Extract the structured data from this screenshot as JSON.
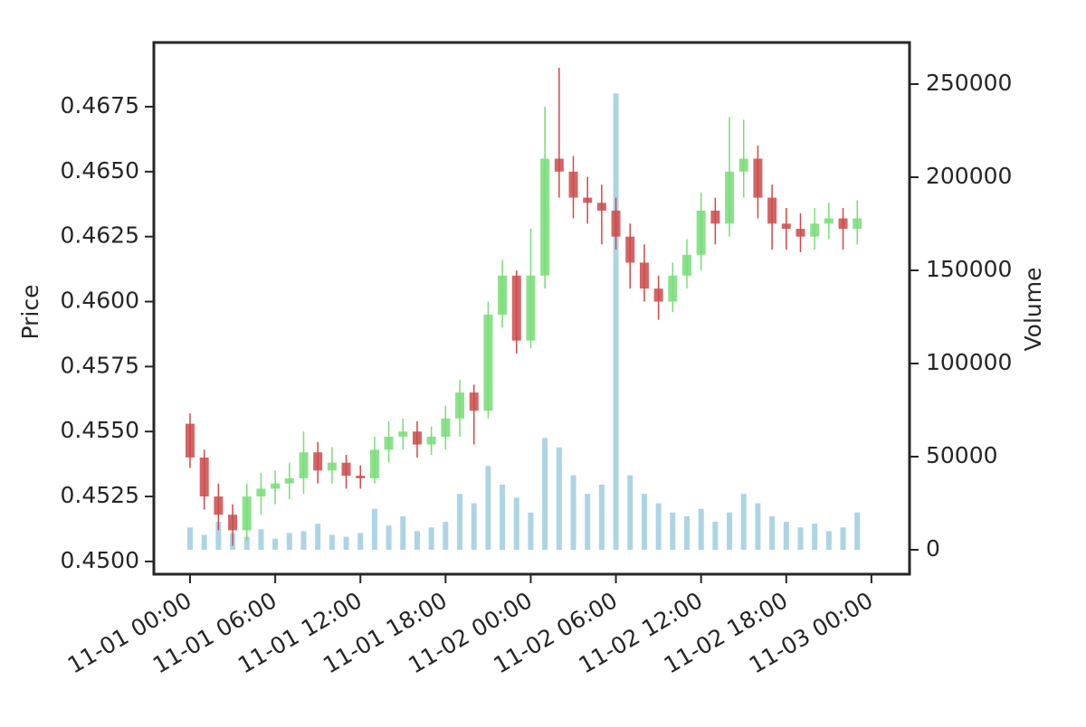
{
  "chart_data": {
    "type": "candlestick",
    "y_label": "Price",
    "y2_label": "Volume",
    "x": [
      "11-01 00:00",
      "11-01 01:00",
      "11-01 02:00",
      "11-01 03:00",
      "11-01 04:00",
      "11-01 05:00",
      "11-01 06:00",
      "11-01 07:00",
      "11-01 08:00",
      "11-01 09:00",
      "11-01 10:00",
      "11-01 11:00",
      "11-01 12:00",
      "11-01 13:00",
      "11-01 14:00",
      "11-01 15:00",
      "11-01 16:00",
      "11-01 17:00",
      "11-01 18:00",
      "11-01 19:00",
      "11-01 20:00",
      "11-01 21:00",
      "11-01 22:00",
      "11-01 23:00",
      "11-02 00:00",
      "11-02 01:00",
      "11-02 02:00",
      "11-02 03:00",
      "11-02 04:00",
      "11-02 05:00",
      "11-02 06:00",
      "11-02 07:00",
      "11-02 08:00",
      "11-02 09:00",
      "11-02 10:00",
      "11-02 11:00",
      "11-02 12:00",
      "11-02 13:00",
      "11-02 14:00",
      "11-02 15:00",
      "11-02 16:00",
      "11-02 17:00",
      "11-02 18:00",
      "11-02 19:00",
      "11-02 20:00",
      "11-02 21:00",
      "11-02 22:00",
      "11-02 23:00"
    ],
    "open": [
      0.4553,
      0.454,
      0.4525,
      0.4518,
      0.4512,
      0.4525,
      0.4528,
      0.453,
      0.4532,
      0.4542,
      0.4535,
      0.4538,
      0.4533,
      0.4532,
      0.4543,
      0.4548,
      0.455,
      0.4545,
      0.4548,
      0.4555,
      0.4565,
      0.4558,
      0.4595,
      0.461,
      0.4585,
      0.461,
      0.4655,
      0.465,
      0.464,
      0.4638,
      0.4635,
      0.4625,
      0.4615,
      0.4605,
      0.46,
      0.461,
      0.4618,
      0.4635,
      0.463,
      0.465,
      0.4655,
      0.464,
      0.463,
      0.4628,
      0.4625,
      0.463,
      0.4632,
      0.4628
    ],
    "high": [
      0.4557,
      0.4543,
      0.453,
      0.4522,
      0.453,
      0.4534,
      0.4535,
      0.4538,
      0.455,
      0.4546,
      0.4544,
      0.4541,
      0.4537,
      0.4548,
      0.4554,
      0.4555,
      0.4554,
      0.4552,
      0.456,
      0.457,
      0.4568,
      0.46,
      0.4616,
      0.4612,
      0.4628,
      0.4675,
      0.469,
      0.4656,
      0.4648,
      0.4645,
      0.464,
      0.463,
      0.4622,
      0.461,
      0.4615,
      0.4624,
      0.4642,
      0.464,
      0.4671,
      0.467,
      0.466,
      0.4645,
      0.4636,
      0.4634,
      0.4636,
      0.4638,
      0.4636,
      0.4639
    ],
    "low": [
      0.4536,
      0.452,
      0.4512,
      0.4506,
      0.4508,
      0.4518,
      0.4522,
      0.4524,
      0.4526,
      0.453,
      0.453,
      0.4528,
      0.4528,
      0.453,
      0.4538,
      0.4543,
      0.454,
      0.4541,
      0.4543,
      0.4548,
      0.4545,
      0.4555,
      0.459,
      0.458,
      0.4582,
      0.4605,
      0.464,
      0.4632,
      0.463,
      0.4622,
      0.462,
      0.4605,
      0.46,
      0.4593,
      0.4596,
      0.4605,
      0.4612,
      0.4622,
      0.4625,
      0.464,
      0.4632,
      0.462,
      0.462,
      0.4619,
      0.462,
      0.4624,
      0.462,
      0.4622
    ],
    "close": [
      0.454,
      0.4525,
      0.4518,
      0.4512,
      0.4525,
      0.4528,
      0.453,
      0.4532,
      0.4542,
      0.4535,
      0.4538,
      0.4533,
      0.4532,
      0.4543,
      0.4548,
      0.455,
      0.4545,
      0.4548,
      0.4555,
      0.4565,
      0.4558,
      0.4595,
      0.461,
      0.4585,
      0.461,
      0.4655,
      0.465,
      0.464,
      0.4638,
      0.4635,
      0.4625,
      0.4615,
      0.4605,
      0.46,
      0.461,
      0.4618,
      0.4635,
      0.463,
      0.465,
      0.4655,
      0.464,
      0.463,
      0.4628,
      0.4625,
      0.463,
      0.4632,
      0.4628,
      0.4632
    ],
    "volume": [
      12000,
      8000,
      15000,
      9000,
      7000,
      11000,
      6000,
      9000,
      10000,
      14000,
      8000,
      7000,
      9000,
      22000,
      13000,
      18000,
      10000,
      12000,
      15000,
      30000,
      25000,
      45000,
      35000,
      28000,
      20000,
      60000,
      55000,
      40000,
      30000,
      35000,
      245000,
      40000,
      30000,
      25000,
      20000,
      18000,
      22000,
      15000,
      20000,
      30000,
      25000,
      18000,
      15000,
      12000,
      14000,
      10000,
      12000,
      20000
    ],
    "up_color": "#77dd77",
    "down_color": "#cd4a4a",
    "volume_color": "#4a9fc4",
    "xlim": [
      "10-31 21:27",
      "11-03 02:41"
    ],
    "xticks": [
      "11-01 00:00",
      "11-01 06:00",
      "11-01 12:00",
      "11-01 18:00",
      "11-02 00:00",
      "11-02 06:00",
      "11-02 12:00",
      "11-02 18:00",
      "11-03 00:00"
    ],
    "ylim": [
      0.44951,
      0.46997
    ],
    "yticks": [
      {
        "value": 0.45,
        "label": "0.4500"
      },
      0.4525,
      {
        "value": 0.455,
        "label": "0.4550"
      },
      0.4575,
      {
        "value": 0.46,
        "label": "0.4600"
      },
      0.4625,
      {
        "value": 0.465,
        "label": "0.4650"
      },
      0.4675
    ],
    "y2lim": [
      -13107,
      272330
    ],
    "y2ticks": [
      0,
      50000,
      100000,
      150000,
      200000,
      250000
    ]
  }
}
